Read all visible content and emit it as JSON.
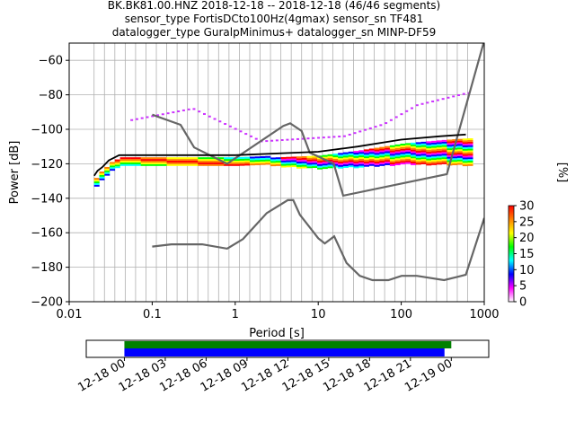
{
  "chart_data": [
    {
      "type": "heatmap",
      "title_lines": [
        "BK.BK81.00.HNZ   2018-12-18 -- 2018-12-18  (46/46 segments)",
        "sensor_type FortisDCto100Hz(4gmax) sensor_sn TF481",
        "datalogger_type GuralpMinimus+ datalogger_sn MINP-DF59"
      ],
      "xlabel": "Period [s]",
      "ylabel": "Power [dB]",
      "xscale": "log",
      "xlim": [
        0.01,
        1000
      ],
      "ylim": [
        -200,
        -50
      ],
      "x_ticks": [
        0.01,
        0.1,
        1,
        10,
        100,
        1000
      ],
      "x_tick_labels": [
        "0.01",
        "0.1",
        "1",
        "10",
        "100",
        "1000"
      ],
      "y_ticks": [
        -200,
        -180,
        -160,
        -140,
        -120,
        -100,
        -80,
        -60
      ],
      "y_tick_labels": [
        "−200",
        "−180",
        "−160",
        "−140",
        "−120",
        "−100",
        "−80",
        "−60"
      ],
      "grid": "vertical at period bins",
      "series": [
        {
          "role": "noise model (high)",
          "color": "#666666",
          "x": [
            0.1,
            0.22,
            0.32,
            0.8,
            3.8,
            4.6,
            6.3,
            7.9,
            15.4,
            20,
            354.8,
            10000
          ],
          "y": [
            -91.5,
            -97.4,
            -110.5,
            -120,
            -98,
            -96.5,
            -101,
            -113.5,
            -120,
            -138.5,
            -126,
            -48.5
          ]
        },
        {
          "role": "noise model (low)",
          "color": "#666666",
          "x": [
            0.1,
            0.17,
            0.4,
            0.8,
            1.24,
            2.4,
            4.3,
            5,
            6,
            10,
            12,
            15.6,
            21.9,
            31.6,
            45,
            70,
            101,
            154,
            328,
            600,
            10000
          ],
          "y": [
            -168,
            -166.7,
            -166.7,
            -169.2,
            -163.7,
            -148.6,
            -141.1,
            -141.1,
            -149.5,
            -163.2,
            -166.2,
            -162.1,
            -177.5,
            -185,
            -187.5,
            -187.5,
            -185,
            -185,
            -187.5,
            -184.4,
            -151.5
          ]
        },
        {
          "role": "mode",
          "color": "#000000",
          "x": [
            0.02,
            0.022,
            0.025,
            0.03,
            0.04,
            0.1,
            1,
            10,
            30,
            100,
            300,
            600
          ],
          "y": [
            -127,
            -124,
            -122,
            -118,
            -115,
            -115,
            -115,
            -113,
            -110,
            -106,
            -104,
            -103
          ]
        }
      ],
      "colorbar": {
        "label": "[%]",
        "range": [
          0,
          30
        ],
        "ticks": [
          0,
          5,
          10,
          15,
          20,
          25,
          30
        ],
        "colormap": [
          "#ffffff",
          "#ff00ff",
          "#0000ff",
          "#00ffff",
          "#00ff00",
          "#ffff00",
          "#ff8000",
          "#ff0000"
        ]
      }
    },
    {
      "type": "timeline",
      "x_tick_labels": [
        "12-18 00",
        "12-18 03",
        "12-18 06",
        "12-18 09",
        "12-18 12",
        "12-18 15",
        "12-18 18",
        "12-18 21",
        "12-19 00"
      ],
      "xlim": [
        "12-17 21:12",
        "12-19 02:45"
      ],
      "bars": [
        {
          "role": "available data",
          "color": "#008000",
          "start": "12-18 00",
          "end": "12-19 00"
        },
        {
          "role": "used segments",
          "color": "#0000ff",
          "start": "12-18 00",
          "end": "12-18 23:30"
        }
      ]
    }
  ]
}
